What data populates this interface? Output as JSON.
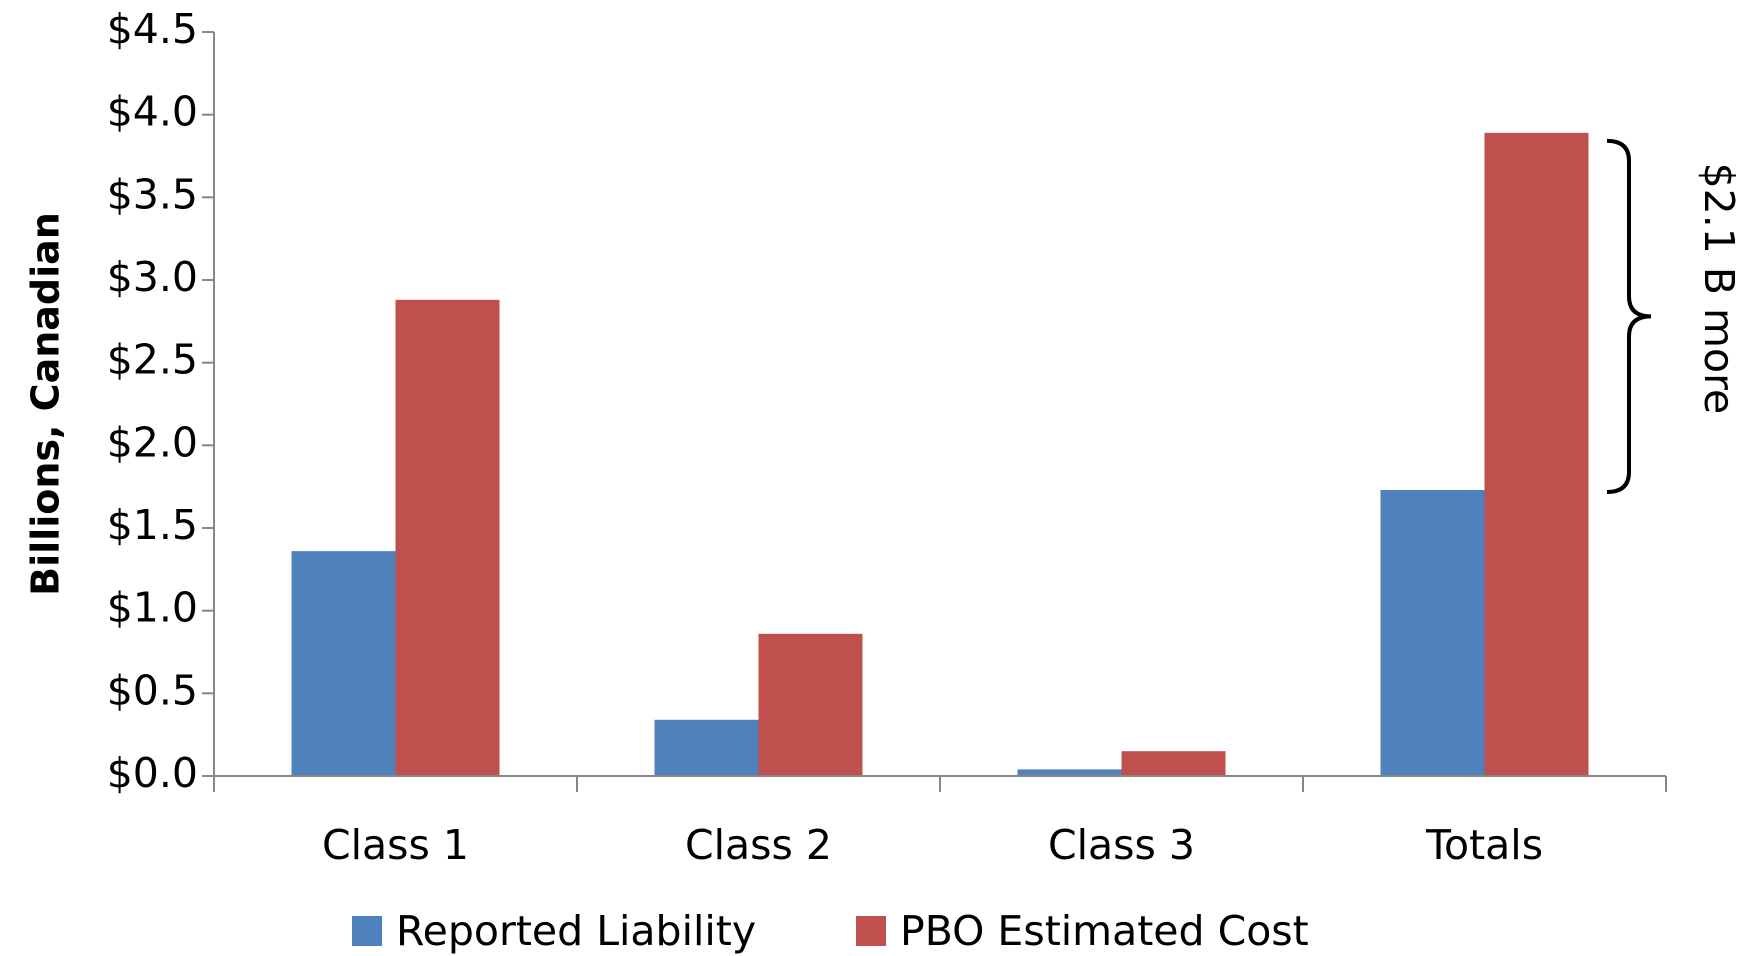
{
  "chart_data": {
    "type": "bar",
    "categories": [
      "Class 1",
      "Class 2",
      "Class 3",
      "Totals"
    ],
    "series": [
      {
        "name": "Reported Liability",
        "values": [
          1.36,
          0.34,
          0.04,
          1.73
        ],
        "color": "#4f81bd"
      },
      {
        "name": "PBO Estimated Cost",
        "values": [
          2.88,
          0.86,
          0.15,
          3.89
        ],
        "color": "#c0504d"
      }
    ],
    "title": "",
    "xlabel": "",
    "ylabel": "Billions, Canadian",
    "ylim": [
      0,
      4.5
    ],
    "yticks": [
      "$0.0",
      "$0.5",
      "$1.0",
      "$1.5",
      "$2.0",
      "$2.5",
      "$3.0",
      "$3.5",
      "$4.0",
      "$4.5"
    ],
    "ytick_values": [
      0,
      0.5,
      1.0,
      1.5,
      2.0,
      2.5,
      3.0,
      3.5,
      4.0,
      4.5
    ],
    "grid": false,
    "legend_position": "bottom",
    "annotation": {
      "text": "$2.1 B more",
      "category": "Totals"
    }
  }
}
